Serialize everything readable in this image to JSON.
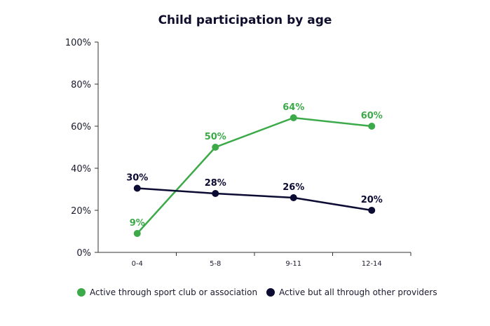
{
  "chart_data": {
    "type": "line",
    "title": "Child participation by age",
    "categories": [
      "0-4",
      "5-8",
      "9-11",
      "12-14"
    ],
    "yticks": [
      "0%",
      "20%",
      "40%",
      "60%",
      "80%",
      "100%"
    ],
    "ylim": [
      0,
      100
    ],
    "grid": false,
    "legend_position": "bottom",
    "series": [
      {
        "name": "Active through sport club or association",
        "color": "#3daa4a",
        "values": [
          9,
          50,
          64,
          60
        ],
        "labels": [
          "9%",
          "50%",
          "64%",
          "60%"
        ]
      },
      {
        "name": "Active but all through other providers",
        "color": "#0b0b33",
        "values": [
          30.5,
          28,
          26,
          20
        ],
        "labels": [
          "30%",
          "28%",
          "26%",
          "20%"
        ]
      }
    ]
  }
}
